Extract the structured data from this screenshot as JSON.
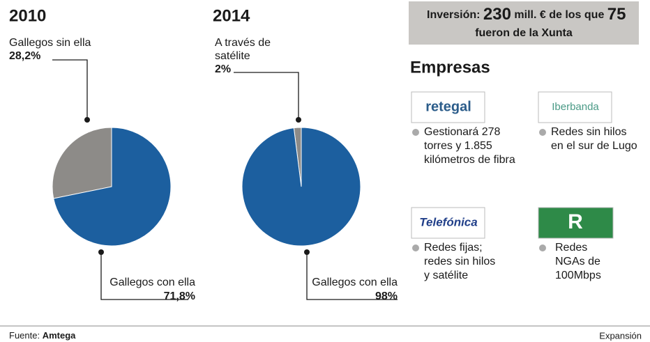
{
  "chart_data": [
    {
      "type": "pie",
      "title": "2010",
      "categories": [
        "Gallegos sin ella",
        "Gallegos con ella"
      ],
      "values": [
        28.2,
        71.8
      ],
      "value_labels": [
        "28,2%",
        "71,8%"
      ],
      "colors": [
        "#8d8b88",
        "#1c5f9f"
      ]
    },
    {
      "type": "pie",
      "title": "2014",
      "categories": [
        "A través de satélite",
        "Gallegos con ella"
      ],
      "values": [
        2,
        98
      ],
      "value_labels": [
        "2%",
        "98%"
      ],
      "colors": [
        "#8d8b88",
        "#1c5f9f"
      ]
    }
  ],
  "investment": {
    "prefix": "Inversión:",
    "amount": "230",
    "middle": "mill. € de los que",
    "amount2": "75",
    "suffix": "fueron de la Xunta"
  },
  "companies_title": "Empresas",
  "companies": [
    {
      "logo": "retegal",
      "lines": [
        "Gestionará 278",
        "torres y 1.855",
        "kilómetros de fibra"
      ]
    },
    {
      "logo": "Iberbanda",
      "lines": [
        "Redes sin hilos",
        "en el sur de Lugo"
      ]
    },
    {
      "logo": "Telefónica",
      "lines": [
        "Redes fijas;",
        "redes sin hilos",
        "y satélite"
      ]
    },
    {
      "logo": "R",
      "lines": [
        "Redes",
        "NGAs de",
        "100Mbps"
      ]
    }
  ],
  "footer": {
    "source_label": "Fuente:",
    "source": "Amtega",
    "brand": "Expansión"
  }
}
